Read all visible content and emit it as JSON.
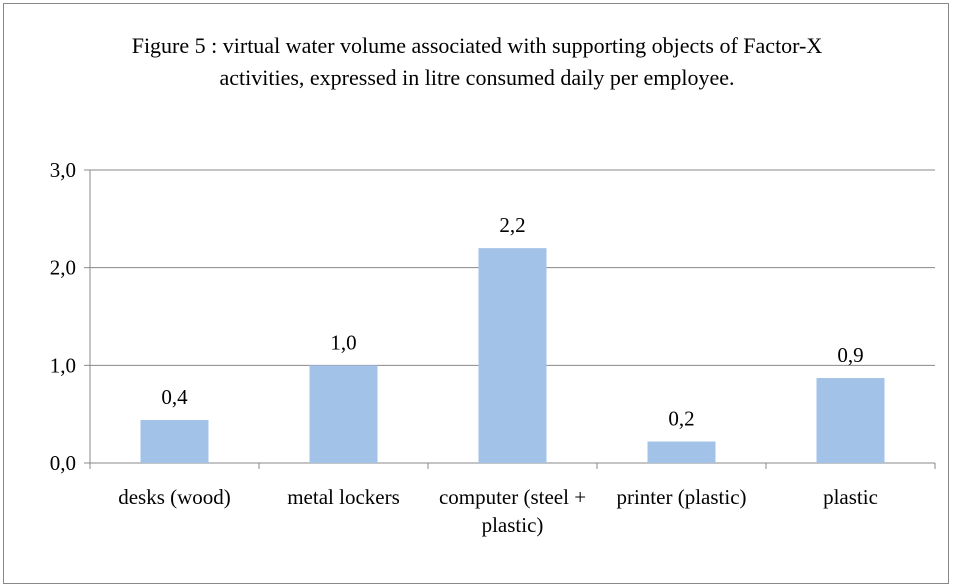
{
  "chart_data": {
    "type": "bar",
    "title": "Figure 5 : virtual water volume associated with supporting objects of Factor-X activities, expressed in litre consumed daily per employee.",
    "categories": [
      "desks (wood)",
      "metal lockers",
      "computer (steel + plastic)",
      "printer (plastic)",
      "plastic"
    ],
    "values": [
      0.44,
      1.0,
      2.2,
      0.22,
      0.87
    ],
    "value_labels": [
      "0,4",
      "1,0",
      "2,2",
      "0,2",
      "0,9"
    ],
    "color": "#a3c2e8",
    "ylim": [
      0,
      3
    ],
    "yticks": [
      {
        "value": 0,
        "label": "0,0"
      },
      {
        "value": 1,
        "label": "1,0"
      },
      {
        "value": 2,
        "label": "2,0"
      },
      {
        "value": 3,
        "label": "3,0"
      }
    ],
    "grid": true
  }
}
